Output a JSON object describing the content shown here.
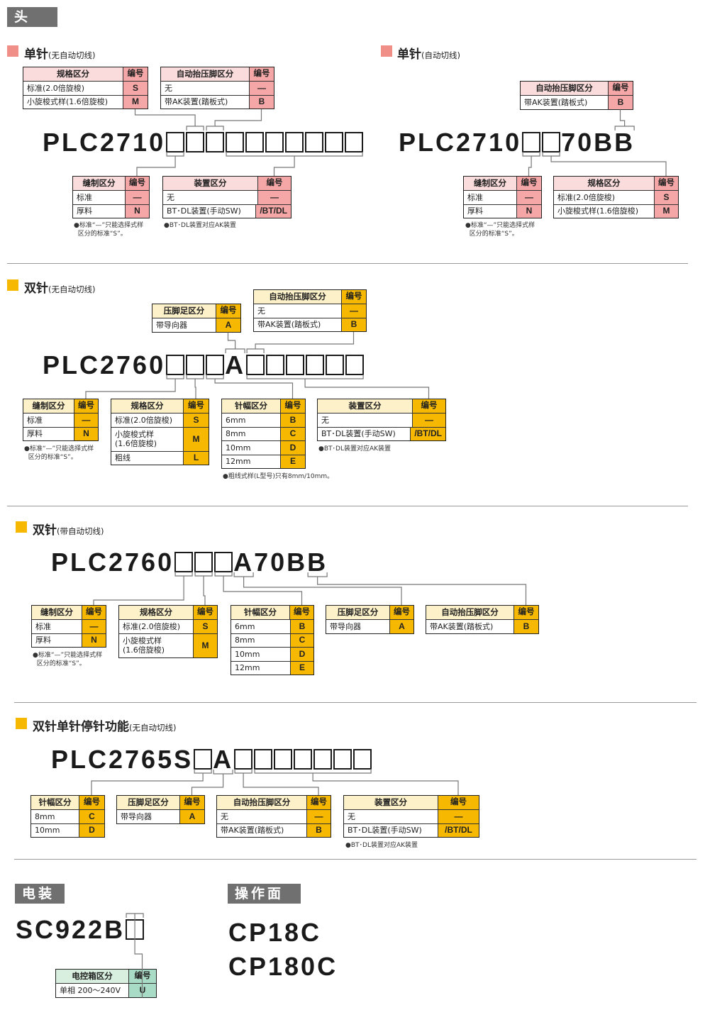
{
  "tags": {
    "head": "头 部",
    "electric": "电装",
    "panel": "操作面板"
  },
  "themes": {
    "pink": {
      "square": "#f08f88",
      "header": "#fbdcdc",
      "code": "#f4a7a6"
    },
    "yellow": {
      "square": "#f6b800",
      "header": "#fdf1c9",
      "code": "#f6b800"
    },
    "green": {
      "header": "#d8efdf",
      "code": "#a9dcc6"
    }
  },
  "sections": [
    {
      "title": "单针",
      "subtitle": "(无自动切线)",
      "theme": "pink",
      "model": [
        "PLC2710",
        "□",
        "□",
        "□",
        "□",
        "□",
        "□",
        "□",
        "□",
        "□",
        "□"
      ],
      "tables": [
        {
          "header": [
            "规格区分",
            "编号"
          ],
          "rows": [
            [
              "标准(2.0倍旋梭)",
              "S"
            ],
            [
              "小旋梭式样(1.6倍旋梭)",
              "M"
            ]
          ]
        },
        {
          "header": [
            "自动抬压脚区分",
            "编号"
          ],
          "rows": [
            [
              "无",
              "—"
            ],
            [
              "带AK装置(踏板式)",
              "B"
            ]
          ]
        },
        {
          "header": [
            "缝制区分",
            "编号"
          ],
          "rows": [
            [
              "标准",
              "—"
            ],
            [
              "厚料",
              "N"
            ]
          ]
        },
        {
          "header": [
            "装置区分",
            "编号"
          ],
          "rows": [
            [
              "无",
              "—"
            ],
            [
              "BT･DL装置(手动SW)",
              "/BT/DL"
            ]
          ]
        }
      ],
      "notes": [
        "●标准“—”只能选择式样\n  区分的标准“S”。",
        "●BT･DL装置对应AK装置"
      ]
    },
    {
      "title": "单针",
      "subtitle": "(自动切线)",
      "theme": "pink",
      "model": [
        "PLC2710",
        "□",
        "□",
        "70B",
        "B"
      ],
      "tables": [
        {
          "header": [
            "自动抬压脚区分",
            "编号"
          ],
          "rows": [
            [
              "带AK装置(踏板式)",
              "B"
            ]
          ]
        },
        {
          "header": [
            "缝制区分",
            "编号"
          ],
          "rows": [
            [
              "标准",
              "—"
            ],
            [
              "厚料",
              "N"
            ]
          ]
        },
        {
          "header": [
            "规格区分",
            "编号"
          ],
          "rows": [
            [
              "标准(2.0倍旋梭)",
              "S"
            ],
            [
              "小旋梭式样(1.6倍旋梭)",
              "M"
            ]
          ]
        }
      ],
      "notes": [
        "●标准“—”只能选择式样\n  区分的标准“S”。"
      ]
    },
    {
      "title": "双针",
      "subtitle": "(无自动切线)",
      "theme": "yellow",
      "model": [
        "PLC2760",
        "□",
        "□",
        "□",
        "A",
        "□",
        "□",
        "□",
        "□",
        "□",
        "□"
      ],
      "tables": [
        {
          "header": [
            "压脚足区分",
            "编号"
          ],
          "rows": [
            [
              "带导向器",
              "A"
            ]
          ]
        },
        {
          "header": [
            "自动抬压脚区分",
            "编号"
          ],
          "rows": [
            [
              "无",
              "—"
            ],
            [
              "带AK装置(踏板式)",
              "B"
            ]
          ]
        },
        {
          "header": [
            "缝制区分",
            "编号"
          ],
          "rows": [
            [
              "标准",
              "—"
            ],
            [
              "厚料",
              "N"
            ]
          ]
        },
        {
          "header": [
            "规格区分",
            "编号"
          ],
          "rows": [
            [
              "标准(2.0倍旋梭)",
              "S"
            ],
            [
              "小旋梭式样\n(1.6倍旋梭)",
              "M"
            ],
            [
              "粗线",
              "L"
            ]
          ]
        },
        {
          "header": [
            "针幅区分",
            "编号"
          ],
          "rows": [
            [
              "6mm",
              "B"
            ],
            [
              "8mm",
              "C"
            ],
            [
              "10mm",
              "D"
            ],
            [
              "12mm",
              "E"
            ]
          ]
        },
        {
          "header": [
            "装置区分",
            "编号"
          ],
          "rows": [
            [
              "无",
              "—"
            ],
            [
              "BT･DL装置(手动SW)",
              "/BT/DL"
            ]
          ]
        }
      ],
      "notes": [
        "●标准“—”只能选择式样\n  区分的标准“S”。",
        "●BT･DL装置对应AK装置",
        "●粗线式样(L型号)只有8mm/10mm。"
      ]
    },
    {
      "title": "双针",
      "subtitle": "(带自动切线)",
      "theme": "yellow",
      "model": [
        "PLC2760",
        "□",
        "□",
        "□",
        "A",
        "70B",
        "B"
      ],
      "tables": [
        {
          "header": [
            "缝制区分",
            "编号"
          ],
          "rows": [
            [
              "标准",
              "—"
            ],
            [
              "厚料",
              "N"
            ]
          ]
        },
        {
          "header": [
            "规格区分",
            "编号"
          ],
          "rows": [
            [
              "标准(2.0倍旋梭)",
              "S"
            ],
            [
              "小旋梭式样\n(1.6倍旋梭)",
              "M"
            ]
          ]
        },
        {
          "header": [
            "针幅区分",
            "编号"
          ],
          "rows": [
            [
              "6mm",
              "B"
            ],
            [
              "8mm",
              "C"
            ],
            [
              "10mm",
              "D"
            ],
            [
              "12mm",
              "E"
            ]
          ]
        },
        {
          "header": [
            "压脚足区分",
            "编号"
          ],
          "rows": [
            [
              "带导向器",
              "A"
            ]
          ]
        },
        {
          "header": [
            "自动抬压脚区分",
            "编号"
          ],
          "rows": [
            [
              "带AK装置(踏板式)",
              "B"
            ]
          ]
        }
      ],
      "notes": [
        "●标准“—”只能选择式样\n  区分的标准“S”。"
      ]
    },
    {
      "title": "双针单针停针功能",
      "subtitle": "(无自动切线)",
      "theme": "yellow",
      "model": [
        "PLC2765S",
        "□",
        "A",
        "□",
        "□",
        "□",
        "□",
        "□",
        "□",
        "□"
      ],
      "tables": [
        {
          "header": [
            "针幅区分",
            "编号"
          ],
          "rows": [
            [
              "8mm",
              "C"
            ],
            [
              "10mm",
              "D"
            ]
          ]
        },
        {
          "header": [
            "压脚足区分",
            "编号"
          ],
          "rows": [
            [
              "带导向器",
              "A"
            ]
          ]
        },
        {
          "header": [
            "自动抬压脚区分",
            "编号"
          ],
          "rows": [
            [
              "无",
              "—"
            ],
            [
              "带AK装置(踏板式)",
              "B"
            ]
          ]
        },
        {
          "header": [
            "装置区分",
            "编号"
          ],
          "rows": [
            [
              "无",
              "—"
            ],
            [
              "BT･DL装置(手动SW)",
              "/BT/DL"
            ]
          ]
        }
      ],
      "notes": [
        "●BT･DL装置对应AK装置"
      ]
    },
    {
      "title": "",
      "subtitle": "",
      "theme": "green",
      "model": [
        "SC922B",
        "□"
      ],
      "tables": [
        {
          "header": [
            "电控箱区分",
            "编号"
          ],
          "rows": [
            [
              "单相 200～240V",
              "U"
            ]
          ]
        }
      ],
      "notes": []
    }
  ],
  "panel_models": [
    "CP18C",
    "CP180C"
  ]
}
